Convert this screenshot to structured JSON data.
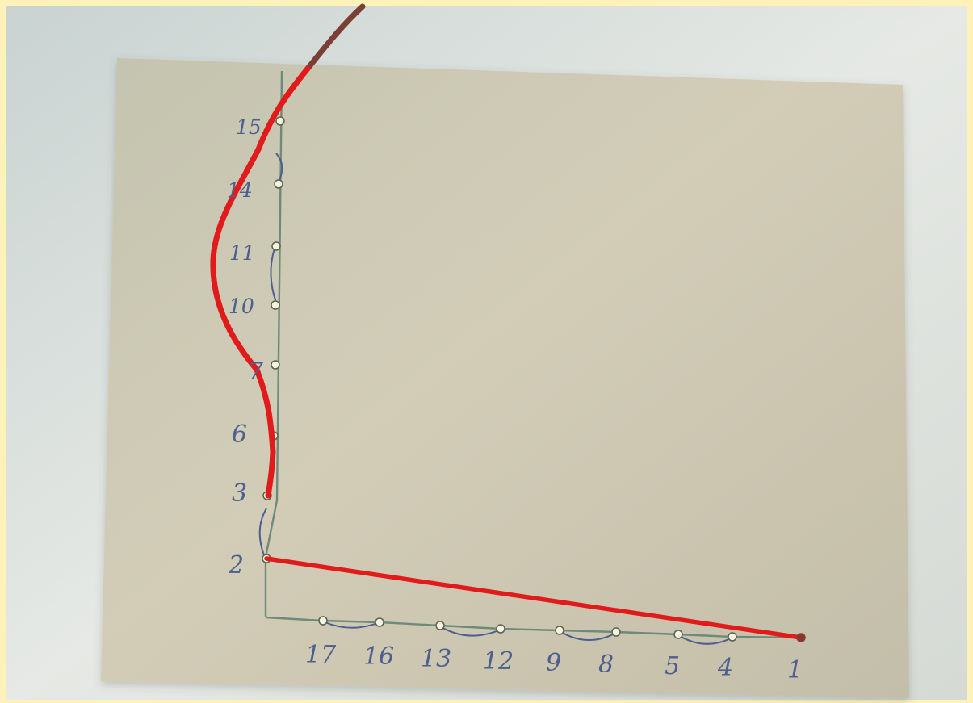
{
  "colors": {
    "frame": "#fff2b8",
    "photo_background": "#d9dedb",
    "cardboard": "#c8c2aa",
    "thread": "#e11b1b",
    "thread_dark": "#7b3f35",
    "pencil": "#4d5f8f",
    "axis_line": "#6e8a79",
    "pin": "#f5f2df"
  },
  "vertical_axis_labels": [
    "15",
    "14",
    "11",
    "10",
    "7",
    "6",
    "3",
    "2"
  ],
  "horizontal_axis_labels": [
    "17",
    "16",
    "13",
    "12",
    "9",
    "8",
    "5",
    "4",
    "1"
  ]
}
